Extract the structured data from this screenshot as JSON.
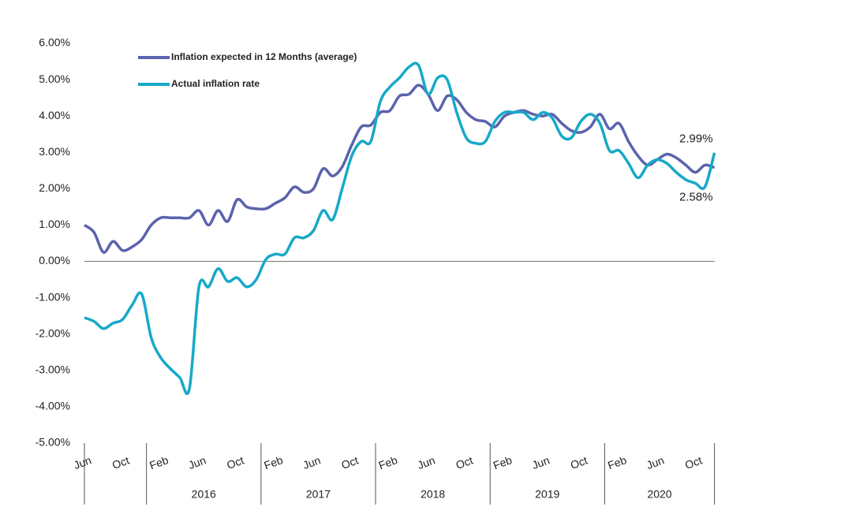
{
  "chart_data": {
    "type": "line",
    "categories": [
      "Jun",
      null,
      null,
      null,
      "Oct",
      null,
      null,
      null,
      "Feb",
      null,
      null,
      null,
      "Jun",
      null,
      null,
      null,
      "Oct",
      null,
      null,
      null,
      "Feb",
      null,
      null,
      null,
      "Jun",
      null,
      null,
      null,
      "Oct",
      null,
      null,
      null,
      "Feb",
      null,
      null,
      null,
      "Jun",
      null,
      null,
      null,
      "Oct",
      null,
      null,
      null,
      "Feb",
      null,
      null,
      null,
      "Jun",
      null,
      null,
      null,
      "Oct",
      null,
      null,
      null,
      "Feb",
      null,
      null,
      null,
      "Jun",
      null,
      null,
      null,
      "Oct",
      null,
      null
    ],
    "year_labels": [
      "2016",
      "2017",
      "2018",
      "2019",
      "2020"
    ],
    "series": [
      {
        "name": "Inflation expected in 12 Months (average)",
        "color": "#5b63ad",
        "values": [
          1.0,
          0.8,
          0.25,
          0.55,
          0.3,
          0.4,
          0.6,
          1.0,
          1.2,
          1.2,
          1.2,
          1.2,
          1.4,
          1.0,
          1.4,
          1.1,
          1.7,
          1.5,
          1.45,
          1.45,
          1.6,
          1.75,
          2.05,
          1.9,
          2.0,
          2.55,
          2.35,
          2.6,
          3.2,
          3.7,
          3.75,
          4.1,
          4.15,
          4.55,
          4.6,
          4.85,
          4.6,
          4.15,
          4.55,
          4.45,
          4.1,
          3.9,
          3.85,
          3.7,
          4.0,
          4.1,
          4.15,
          4.05,
          4.0,
          4.05,
          3.8,
          3.6,
          3.55,
          3.7,
          4.05,
          3.65,
          3.8,
          3.3,
          2.9,
          2.65,
          2.8,
          2.95,
          2.85,
          2.65,
          2.45,
          2.65,
          2.58
        ],
        "value_labels": [
          null,
          null,
          null,
          null,
          null,
          null,
          null,
          null,
          null,
          null,
          null,
          null,
          null,
          null,
          null,
          null,
          null,
          null,
          null,
          null,
          null,
          null,
          null,
          null,
          null,
          null,
          null,
          null,
          null,
          null,
          null,
          null,
          null,
          null,
          null,
          null,
          null,
          null,
          null,
          null,
          null,
          null,
          null,
          null,
          null,
          null,
          null,
          null,
          null,
          null,
          null,
          null,
          null,
          null,
          null,
          null,
          null,
          null,
          null,
          null,
          null,
          null,
          null,
          null,
          null,
          null,
          "2.58%"
        ]
      },
      {
        "name": "Actual inflation rate",
        "color": "#17a9c8",
        "values": [
          -1.55,
          -1.65,
          -1.85,
          -1.7,
          -1.6,
          -1.2,
          -0.9,
          -2.1,
          -2.65,
          -2.95,
          -3.2,
          -3.5,
          -0.7,
          -0.7,
          -0.2,
          -0.55,
          -0.45,
          -0.7,
          -0.5,
          0.05,
          0.2,
          0.2,
          0.65,
          0.65,
          0.85,
          1.4,
          1.15,
          2.0,
          2.9,
          3.3,
          3.3,
          4.4,
          4.8,
          5.05,
          5.35,
          5.4,
          4.6,
          5.05,
          5.0,
          4.1,
          3.4,
          3.25,
          3.3,
          3.85,
          4.1,
          4.1,
          4.1,
          3.9,
          4.1,
          3.95,
          3.45,
          3.4,
          3.85,
          4.05,
          3.8,
          3.05,
          3.05,
          2.7,
          2.3,
          2.65,
          2.8,
          2.7,
          2.45,
          2.25,
          2.15,
          2.05,
          2.99
        ],
        "value_labels": [
          null,
          null,
          null,
          null,
          null,
          null,
          null,
          null,
          null,
          null,
          null,
          null,
          null,
          null,
          null,
          null,
          null,
          null,
          null,
          null,
          null,
          null,
          null,
          null,
          null,
          null,
          null,
          null,
          null,
          null,
          null,
          null,
          null,
          null,
          null,
          null,
          null,
          null,
          null,
          null,
          null,
          null,
          null,
          null,
          null,
          null,
          null,
          null,
          null,
          null,
          null,
          null,
          null,
          null,
          null,
          null,
          null,
          null,
          null,
          null,
          null,
          null,
          null,
          null,
          null,
          null,
          "2.99%"
        ]
      }
    ],
    "ylim": [
      -5,
      6
    ],
    "yticks": [
      {
        "value": -5,
        "label": "-5.00%"
      },
      {
        "value": -4,
        "label": "-4.00%"
      },
      {
        "value": -3,
        "label": "-3.00%"
      },
      {
        "value": -2,
        "label": "-2.00%"
      },
      {
        "value": -1,
        "label": "-1.00%"
      },
      {
        "value": 0,
        "label": "0.00%"
      },
      {
        "value": 1,
        "label": "1.00%"
      },
      {
        "value": 2,
        "label": "2.00%"
      },
      {
        "value": 3,
        "label": "3.00%"
      },
      {
        "value": 4,
        "label": "4.00%"
      },
      {
        "value": 5,
        "label": "5.00%"
      },
      {
        "value": 6,
        "label": "6.00%"
      }
    ],
    "legend": "top-left",
    "grid": false
  }
}
